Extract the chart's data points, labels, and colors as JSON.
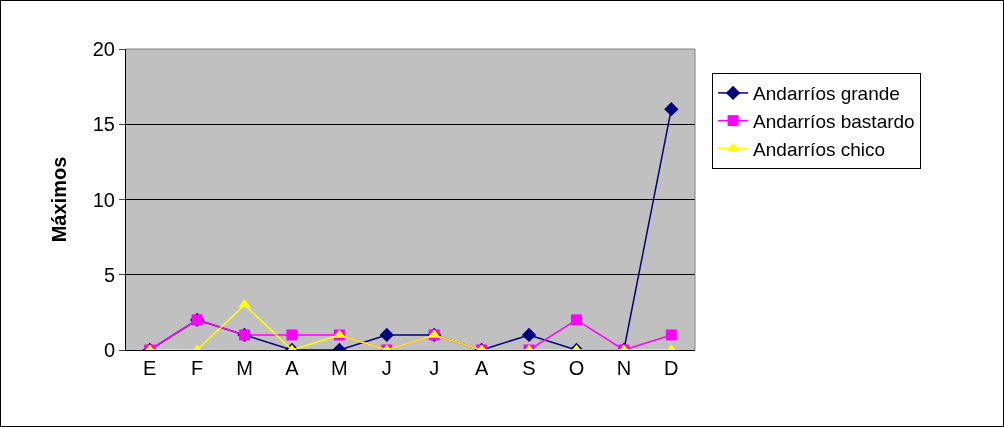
{
  "chart_data": {
    "type": "line",
    "ylabel": "Máximos",
    "categories": [
      "E",
      "F",
      "M",
      "A",
      "M",
      "J",
      "J",
      "A",
      "S",
      "O",
      "N",
      "D"
    ],
    "series": [
      {
        "name": "Andarríos grande",
        "color": "#000080",
        "marker": "diamond",
        "values": [
          0,
          2,
          1,
          0,
          0,
          1,
          1,
          0,
          1,
          0,
          0,
          16
        ]
      },
      {
        "name": "Andarríos bastardo",
        "color": "#ff00ff",
        "marker": "square",
        "values": [
          0,
          2,
          1,
          1,
          1,
          0,
          1,
          0,
          0,
          2,
          0,
          1
        ]
      },
      {
        "name": "Andarríos chico",
        "color": "#ffff00",
        "marker": "triangle",
        "values": [
          0,
          0,
          3,
          0,
          1,
          0,
          1,
          0,
          0,
          0,
          0,
          0
        ]
      }
    ],
    "ylim": [
      0,
      20
    ],
    "yticks": [
      0,
      5,
      10,
      15,
      20
    ],
    "grid": "y",
    "legend": "right",
    "line_style": "solid"
  }
}
